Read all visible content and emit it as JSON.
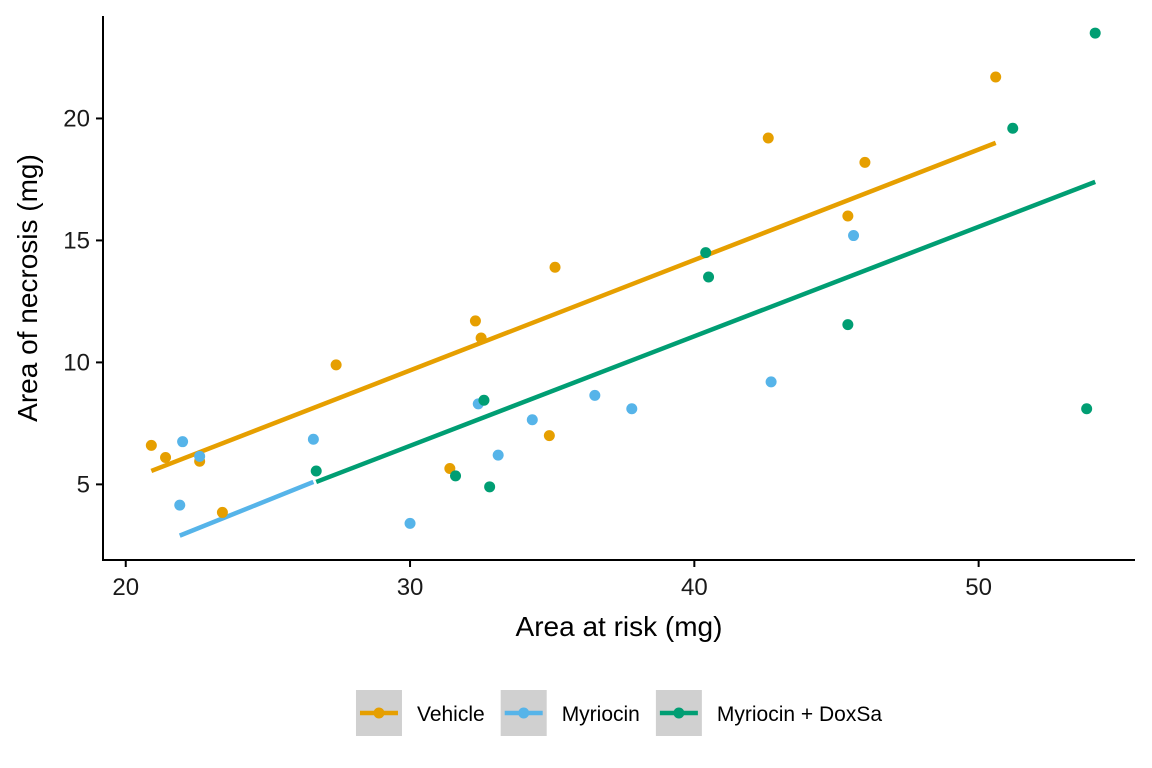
{
  "chart_data": {
    "type": "scatter",
    "xlabel": "Area at risk (mg)",
    "ylabel": "Area of necrosis (mg)",
    "xlim": [
      19.2,
      55.5
    ],
    "ylim": [
      1.9,
      24.2
    ],
    "x_ticks": [
      20,
      30,
      40,
      50
    ],
    "y_ticks": [
      5,
      10,
      15,
      20
    ],
    "grid": false,
    "legend_position": "bottom",
    "series": [
      {
        "name": "Vehicle",
        "color": "#E69F00",
        "points": [
          [
            20.9,
            6.6
          ],
          [
            21.4,
            6.1
          ],
          [
            22.6,
            5.95
          ],
          [
            23.4,
            3.85
          ],
          [
            27.4,
            9.9
          ],
          [
            31.4,
            5.65
          ],
          [
            32.3,
            11.7
          ],
          [
            32.5,
            11.0
          ],
          [
            34.9,
            7.0
          ],
          [
            35.1,
            13.9
          ],
          [
            42.6,
            19.2
          ],
          [
            45.4,
            16.0
          ],
          [
            46.0,
            18.2
          ],
          [
            50.6,
            21.7
          ]
        ],
        "fit": {
          "x": [
            20.9,
            50.6
          ],
          "y": [
            5.55,
            19.0
          ]
        }
      },
      {
        "name": "Myriocin",
        "color": "#56B4E9",
        "points": [
          [
            21.9,
            4.15
          ],
          [
            22.0,
            6.75
          ],
          [
            22.6,
            6.15
          ],
          [
            26.6,
            6.85
          ],
          [
            30.0,
            3.4
          ],
          [
            32.4,
            8.3
          ],
          [
            33.1,
            6.2
          ],
          [
            34.3,
            7.65
          ],
          [
            36.5,
            8.65
          ],
          [
            37.8,
            8.1
          ],
          [
            42.7,
            9.2
          ],
          [
            45.6,
            15.2
          ]
        ],
        "fit": {
          "x": [
            21.9,
            26.6
          ],
          "y": [
            2.9,
            5.1
          ]
        }
      },
      {
        "name": "Myriocin + DoxSa",
        "color": "#009E73",
        "points": [
          [
            26.7,
            5.55
          ],
          [
            31.6,
            5.35
          ],
          [
            32.6,
            8.45
          ],
          [
            32.8,
            4.9
          ],
          [
            40.4,
            14.5
          ],
          [
            40.5,
            13.5
          ],
          [
            45.4,
            11.55
          ],
          [
            51.2,
            19.6
          ],
          [
            53.8,
            8.1
          ],
          [
            54.1,
            23.5
          ]
        ],
        "fit": {
          "x": [
            26.7,
            54.1
          ],
          "y": [
            5.1,
            17.4
          ]
        }
      }
    ]
  }
}
